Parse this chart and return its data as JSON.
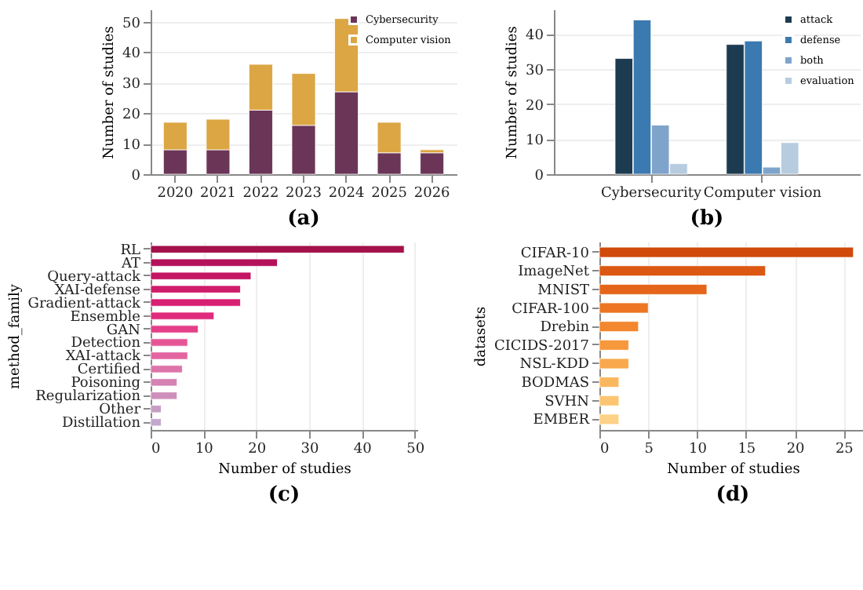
{
  "chart_data": [
    {
      "type": "bar",
      "title": "(a)",
      "ylabel": "Number of studies",
      "categories": [
        "2020",
        "2021",
        "2022",
        "2023",
        "2024",
        "2025",
        "2026"
      ],
      "stacked": true,
      "series": [
        {
          "name": "Cybersecurity",
          "color": "#6b3558",
          "values": [
            8,
            8,
            21,
            16,
            27,
            7,
            7
          ]
        },
        {
          "name": "Computer vision",
          "color": "#dba643",
          "values": [
            9,
            10,
            15,
            17,
            24,
            10,
            1
          ]
        }
      ],
      "ylim": [
        0,
        54
      ],
      "yticks": [
        0,
        10,
        20,
        30,
        40,
        50
      ],
      "grid": "y",
      "legend": "top right"
    },
    {
      "type": "bar",
      "title": "(b)",
      "ylabel": "Number of studies",
      "categories": [
        "Cybersecurity",
        "Computer vision"
      ],
      "series": [
        {
          "name": "attack",
          "color": "#1d3b50",
          "values": [
            33,
            37
          ]
        },
        {
          "name": "defense",
          "color": "#3b79b1",
          "values": [
            44,
            38
          ]
        },
        {
          "name": "both",
          "color": "#7fa4cc",
          "values": [
            14,
            2
          ]
        },
        {
          "name": "evaluation",
          "color": "#b8cce0",
          "values": [
            3,
            9
          ]
        }
      ],
      "ylim": [
        0,
        47
      ],
      "yticks": [
        0,
        10,
        20,
        30,
        40
      ],
      "grid": "y",
      "legend": "top right"
    },
    {
      "type": "bar",
      "title": "(c)",
      "xlabel": "Number of studies",
      "ylabel": "method_family",
      "orientation": "horizontal",
      "categories": [
        "RL",
        "AT",
        "Query-attack",
        "XAI-defense",
        "Gradient-attack",
        "Ensemble",
        "GAN",
        "Detection",
        "XAI-attack",
        "Certified",
        "Poisoning",
        "Regularization",
        "Other",
        "Distillation"
      ],
      "values": [
        48,
        24,
        19,
        17,
        17,
        12,
        9,
        7,
        7,
        6,
        5,
        5,
        2,
        2
      ],
      "colors": [
        "#a3104a",
        "#b5115a",
        "#c41663",
        "#cf1c6b",
        "#d81f72",
        "#e02b7d",
        "#e43f89",
        "#e55596",
        "#e264a0",
        "#dd74aa",
        "#d682b3",
        "#cf8fbb",
        "#c89dc5",
        "#c4a8cf"
      ],
      "xlim": [
        0,
        50.5
      ],
      "xticks": [
        0,
        10,
        20,
        30,
        40,
        50
      ],
      "grid": "x"
    },
    {
      "type": "bar",
      "title": "(d)",
      "xlabel": "Number of studies",
      "ylabel": "datasets",
      "orientation": "horizontal",
      "categories": [
        "CIFAR-10",
        "ImageNet",
        "MNIST",
        "CIFAR-100",
        "Drebin",
        "CICIDS-2017",
        "NSL-KDD",
        "BODMAS",
        "SVHN",
        "EMBER"
      ],
      "values": [
        26,
        17,
        11,
        5,
        4,
        3,
        3,
        2,
        2,
        2
      ],
      "colors": [
        "#d04a0a",
        "#dc5812",
        "#e5661b",
        "#ec7624",
        "#f3872f",
        "#f7983d",
        "#f9a84d",
        "#fbb75f",
        "#fcc572",
        "#fdd186"
      ],
      "xlim": [
        0,
        27.3
      ],
      "xticks": [
        0,
        5,
        10,
        15,
        20,
        25
      ],
      "grid": "x"
    }
  ]
}
